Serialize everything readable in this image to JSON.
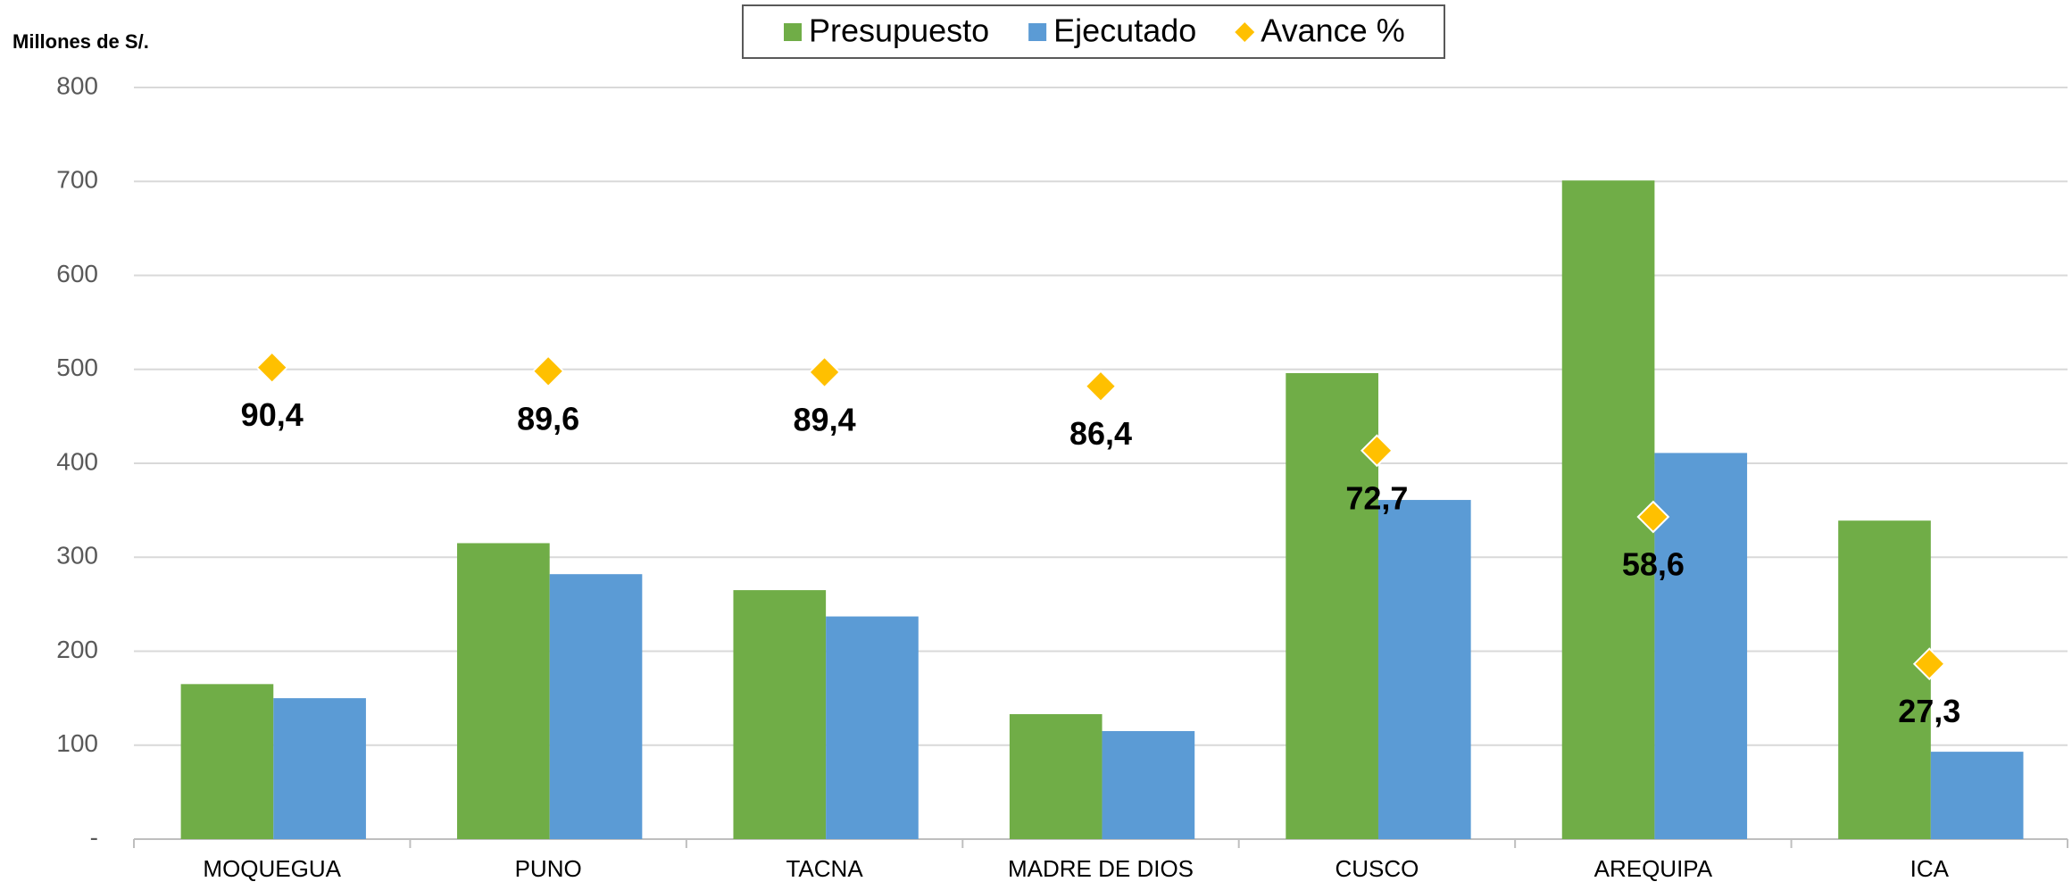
{
  "chart_data": {
    "type": "bar",
    "y_label": "Millones de S/.",
    "categories": [
      "MOQUEGUA",
      "PUNO",
      "TACNA",
      "MADRE DE DIOS",
      "CUSCO",
      "AREQUIPA",
      "ICA"
    ],
    "series": [
      {
        "name": "Presupuesto",
        "color": "#70ad47",
        "values": [
          165,
          315,
          265,
          133,
          496,
          701,
          339
        ]
      },
      {
        "name": "Ejecutado",
        "color": "#5b9bd5",
        "values": [
          150,
          282,
          237,
          115,
          361,
          411,
          93
        ]
      },
      {
        "name": "Avance %",
        "color": "#ffc000",
        "type": "scatter",
        "axis": "y2",
        "values": [
          90.4,
          89.6,
          89.4,
          86.4,
          72.7,
          58.6,
          27.3
        ],
        "value_labels": [
          "90,4",
          "89,6",
          "89,4",
          "86,4",
          "72,7",
          "58,6",
          "27,3"
        ]
      }
    ],
    "ylim": [
      0,
      800
    ],
    "yticks": [
      {
        "value": 0,
        "label": "-"
      },
      100,
      200,
      300,
      400,
      500,
      600,
      700,
      800
    ],
    "y2lim": [
      -10,
      150
    ],
    "grid": true,
    "legend": "top"
  }
}
